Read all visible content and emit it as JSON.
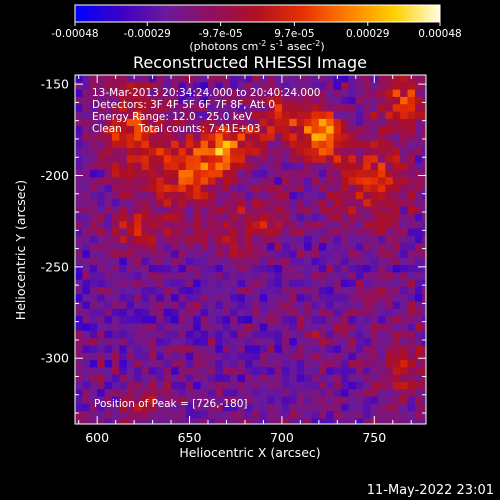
{
  "chart_data": {
    "type": "heatmap",
    "title": "Reconstructed RHESSI Image",
    "xlabel": "Heliocentric X (arcsec)",
    "ylabel": "Heliocentric Y (arcsec)",
    "xlim": [
      588,
      778
    ],
    "ylim": [
      -336,
      -145
    ],
    "xticks": [
      "600",
      "650",
      "700",
      "750"
    ],
    "xtick_values": [
      600,
      650,
      700,
      750
    ],
    "yticks": [
      "-150",
      "-200",
      "-250",
      "-300"
    ],
    "ytick_values": [
      -150,
      -200,
      -250,
      -300
    ],
    "colorbar": {
      "range": [
        -0.00048,
        0.00048
      ],
      "ticks": [
        "-0.00048",
        "-0.00029",
        "-9.7e-05",
        "9.7e-05",
        "0.00029",
        "0.00048"
      ],
      "tick_values": [
        -0.00048,
        -0.00029,
        -9.7e-05,
        9.7e-05,
        0.00029,
        0.00048
      ],
      "units_main": "(photons cm",
      "units_sup1": "-2",
      "units_mid": " s",
      "units_sup2": "-1",
      "units_mid2": " asec",
      "units_sup3": "-2",
      "units_end": ")",
      "colors": [
        "#0000ff",
        "#3c00c8",
        "#6a1a9a",
        "#901060",
        "#b01020",
        "#e83000",
        "#ff8000",
        "#ffd000",
        "#ffffe0"
      ]
    },
    "annotations": [
      "13-Mar-2013 20:34:24.000 to 20:40:24.000",
      "Detectors: 3F 4F 5F 6F 7F 8F, Att 0",
      "Energy Range: 12.0 - 25.0 keV",
      "Clean     Total counts: 7.41E+03"
    ],
    "peak_label": "Position of Peak = [726,-180]",
    "peak": [
      726,
      -180
    ],
    "sources": [
      {
        "x": 722,
        "y": -178,
        "amp": 0.00046,
        "sx": 9,
        "sy": 8
      },
      {
        "x": 670,
        "y": -183,
        "amp": 0.0004,
        "sx": 12,
        "sy": 8
      },
      {
        "x": 650,
        "y": -200,
        "amp": 0.00034,
        "sx": 14,
        "sy": 12
      },
      {
        "x": 620,
        "y": -178,
        "amp": 0.0003,
        "sx": 12,
        "sy": 18
      },
      {
        "x": 700,
        "y": -168,
        "amp": 0.00026,
        "sx": 12,
        "sy": 10
      },
      {
        "x": 748,
        "y": -205,
        "amp": 0.00028,
        "sx": 14,
        "sy": 16
      },
      {
        "x": 765,
        "y": -160,
        "amp": 0.00026,
        "sx": 10,
        "sy": 12
      },
      {
        "x": 625,
        "y": -230,
        "amp": 0.00022,
        "sx": 14,
        "sy": 8
      },
      {
        "x": 690,
        "y": -225,
        "amp": 0.0002,
        "sx": 14,
        "sy": 8
      },
      {
        "x": 668,
        "y": -238,
        "amp": 0.00018,
        "sx": 8,
        "sy": 6
      },
      {
        "x": 765,
        "y": -305,
        "amp": 0.00016,
        "sx": 10,
        "sy": 16
      },
      {
        "x": 625,
        "y": -325,
        "amp": 0.00016,
        "sx": 12,
        "sy": 8
      },
      {
        "x": 720,
        "y": -290,
        "amp": 0.00012,
        "sx": 8,
        "sy": 8
      },
      {
        "x": 750,
        "y": -265,
        "amp": 0.00012,
        "sx": 8,
        "sy": 6
      }
    ],
    "background_level": -0.00022,
    "grid": false
  },
  "footer": {
    "date": "11-May-2022 23:01"
  }
}
